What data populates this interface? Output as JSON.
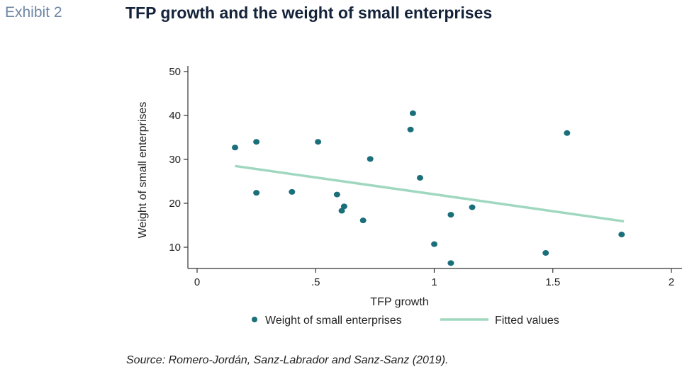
{
  "header": {
    "exhibit": "Exhibit 2",
    "title": "TFP growth and the weight of small enterprises"
  },
  "source": "Source: Romero-Jordán, Sanz-Labrador and Sanz-Sanz (2019).",
  "chart_data": {
    "type": "scatter",
    "xlabel": "TFP growth",
    "ylabel": "Weight of small enterprises",
    "xlim": [
      0,
      2
    ],
    "ylim": [
      5,
      50
    ],
    "xticks": [
      {
        "value": 0,
        "label": "0"
      },
      {
        "value": 0.5,
        "label": ".5"
      },
      {
        "value": 1,
        "label": "1"
      },
      {
        "value": 1.5,
        "label": "1.5"
      },
      {
        "value": 2,
        "label": "2"
      }
    ],
    "yticks": [
      {
        "value": 10,
        "label": "10"
      },
      {
        "value": 20,
        "label": "20"
      },
      {
        "value": 30,
        "label": "30"
      },
      {
        "value": 40,
        "label": "40"
      },
      {
        "value": 50,
        "label": "50"
      }
    ],
    "grid": false,
    "legend_position": "bottom",
    "colors": {
      "points": "#1b6f7a",
      "fit": "#9fd8bf",
      "axis": "#333333"
    },
    "series": [
      {
        "name": "Weight of small enterprises",
        "kind": "scatter",
        "points": [
          [
            0.16,
            32.7
          ],
          [
            0.25,
            34.0
          ],
          [
            0.25,
            22.4
          ],
          [
            0.4,
            22.6
          ],
          [
            0.51,
            34.0
          ],
          [
            0.59,
            22.0
          ],
          [
            0.61,
            18.3
          ],
          [
            0.62,
            19.3
          ],
          [
            0.7,
            16.1
          ],
          [
            0.73,
            30.1
          ],
          [
            0.9,
            36.8
          ],
          [
            0.91,
            40.5
          ],
          [
            0.94,
            25.8
          ],
          [
            1.0,
            10.7
          ],
          [
            1.07,
            17.4
          ],
          [
            1.07,
            6.4
          ],
          [
            1.16,
            19.1
          ],
          [
            1.47,
            8.7
          ],
          [
            1.56,
            36.0
          ],
          [
            1.79,
            12.9
          ]
        ]
      },
      {
        "name": "Fitted values",
        "kind": "line",
        "points": [
          [
            0.16,
            28.5
          ],
          [
            1.8,
            15.9
          ]
        ]
      }
    ]
  }
}
